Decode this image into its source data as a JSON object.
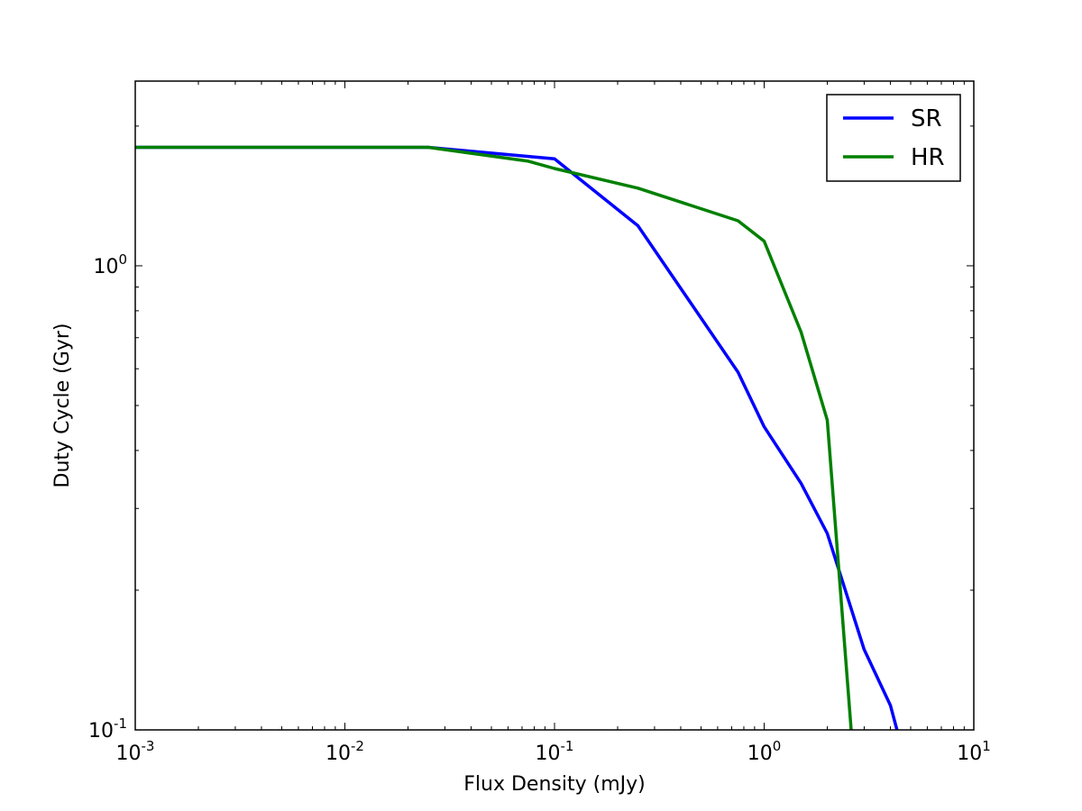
{
  "chart_data": {
    "type": "line",
    "xscale": "log",
    "yscale": "log",
    "xlabel": "Flux Density (mJy)",
    "ylabel": "Duty Cycle (Gyr)",
    "xlim": [
      0.001,
      10
    ],
    "ylim": [
      0.1,
      2.5
    ],
    "grid": false,
    "legend_position": "top-right",
    "x_ticks": [
      {
        "value": 0.001,
        "base": "10",
        "exp": "-3"
      },
      {
        "value": 0.01,
        "base": "10",
        "exp": "-2"
      },
      {
        "value": 0.1,
        "base": "10",
        "exp": "-1"
      },
      {
        "value": 1,
        "base": "10",
        "exp": "0"
      },
      {
        "value": 10,
        "base": "10",
        "exp": "1"
      }
    ],
    "y_ticks": [
      {
        "value": 0.1,
        "base": "10",
        "exp": "-1"
      },
      {
        "value": 1,
        "base": "10",
        "exp": "0"
      }
    ],
    "series": [
      {
        "name": "SR",
        "color": "#0000ff",
        "x": [
          0.001,
          0.025,
          0.075,
          0.1,
          0.25,
          0.75,
          1.0,
          1.5,
          2.0,
          3.0,
          4.0,
          4.3
        ],
        "y": [
          1.8,
          1.8,
          1.72,
          1.7,
          1.22,
          0.59,
          0.45,
          0.34,
          0.265,
          0.149,
          0.113,
          0.1
        ]
      },
      {
        "name": "HR",
        "color": "#008000",
        "x": [
          0.001,
          0.025,
          0.075,
          0.1,
          0.25,
          0.75,
          1.0,
          1.5,
          2.0,
          2.6
        ],
        "y": [
          1.8,
          1.8,
          1.68,
          1.62,
          1.47,
          1.25,
          1.13,
          0.72,
          0.465,
          0.1
        ]
      }
    ]
  }
}
